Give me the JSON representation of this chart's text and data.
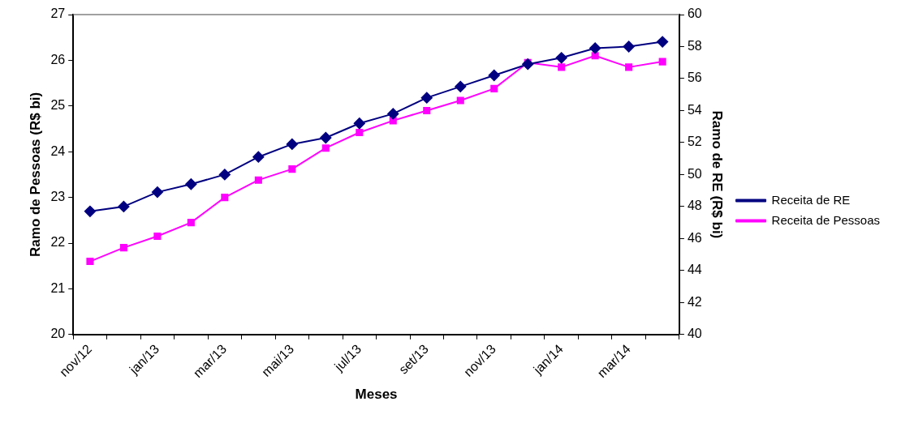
{
  "chart_data": {
    "type": "line",
    "xlabel": "Meses",
    "ylabel": "Ramo de Pessoas (R$ bi)",
    "y2label": "Ramo de RE (R$ bi)",
    "categories": [
      "nov/12",
      null,
      "jan/13",
      null,
      "mar/13",
      null,
      "mai/13",
      null,
      "jul/13",
      null,
      "set/13",
      null,
      "nov/13",
      null,
      "jan/14",
      null,
      "mar/14",
      null
    ],
    "series": [
      {
        "name": "Receita de Pessoas",
        "color": "#ff00ff",
        "marker": "square",
        "values": [
          21.6,
          21.9,
          22.15,
          22.45,
          23.0,
          23.38,
          23.62,
          24.08,
          24.42,
          24.68,
          24.9,
          25.12,
          25.38,
          25.95,
          25.85,
          26.1,
          25.85,
          25.97
        ]
      },
      {
        "name": "Receita de RE",
        "color": "#000080",
        "marker": "diamond",
        "axis": "y2",
        "values": [
          47.7,
          48.0,
          48.9,
          49.4,
          50.0,
          51.1,
          51.9,
          52.3,
          53.2,
          53.8,
          54.8,
          55.5,
          56.2,
          56.9,
          57.3,
          57.9,
          58.0,
          58.3
        ]
      }
    ],
    "ylim": [
      20,
      27
    ],
    "yticks": [
      20,
      21,
      22,
      23,
      24,
      25,
      26,
      27
    ],
    "y2lim": [
      40,
      60
    ],
    "y2ticks": [
      40,
      42,
      44,
      46,
      48,
      50,
      52,
      54,
      56,
      58,
      60
    ],
    "grid": false,
    "legend": "right",
    "line_style": "solid"
  }
}
